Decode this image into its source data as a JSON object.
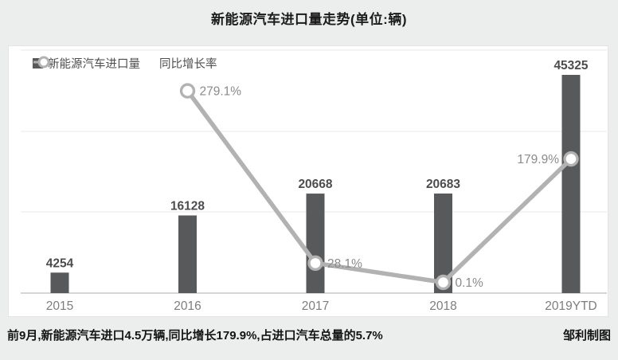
{
  "title": "新能源汽车进口量走势(单位:辆)",
  "legend": {
    "bar_label": "新能源汽车进口量",
    "line_label": "同比增长率"
  },
  "footer": {
    "note": "前9月,新能源汽车进口4.5万辆,同比增长179.9%,占进口汽车总量的5.7%",
    "credit": "邹利制图"
  },
  "colors": {
    "page_bg": "#eceded",
    "panel_bg": "#ffffff",
    "bar": "#58595b",
    "line": "#b2b2b2",
    "marker_fill": "#ffffff",
    "grid": "#e8e8e8",
    "axis": "#c9c9c9",
    "title_text": "#1b1b1b",
    "value_label": "#4c4c4e",
    "pct_label": "#8b8b8d",
    "axis_label": "#7d7d80",
    "footer_text": "#141414"
  },
  "chart_data": {
    "type": "bar",
    "title": "新能源汽车进口量走势(单位:辆)",
    "xlabel": "",
    "ylabel": "",
    "grid": true,
    "legend_position": "top-left",
    "categories": [
      "2015",
      "2016",
      "2017",
      "2018",
      "2019YTD"
    ],
    "series": [
      {
        "name": "新能源汽车进口量",
        "type": "bar",
        "values": [
          4254,
          16128,
          20668,
          20683,
          45325
        ]
      },
      {
        "name": "同比增长率",
        "type": "line",
        "unit": "%",
        "values": [
          null,
          279.1,
          28.1,
          0.1,
          179.9
        ],
        "point_labels": [
          "",
          "279.1%",
          "28.1%",
          "0.1%",
          "179.9%"
        ],
        "label_side": [
          "",
          "right",
          "right",
          "right",
          "left"
        ]
      }
    ],
    "bar_axis_max_hint": 45325,
    "pct_axis_range_hint": [
      0,
      300
    ]
  }
}
